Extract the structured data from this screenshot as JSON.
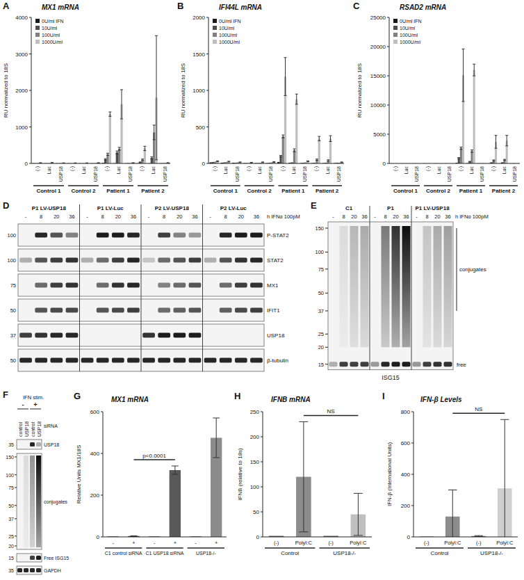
{
  "chart_data": [
    {
      "panel": "A",
      "type": "bar",
      "title": "MX1 mRNA",
      "y_label": "RU normalized to 18S",
      "categories": [
        "(-)",
        "Luc",
        "USP18",
        "(-)",
        "Luc",
        "USP18",
        "(-)",
        "Luc",
        "USP18",
        "(-)",
        "Luc",
        "USP18"
      ],
      "groups": [
        "Control 1",
        "Control 2",
        "Patient 1",
        "Patient 2"
      ],
      "series": [
        {
          "name": "0U/ml IFN",
          "color": "#1a1a1a",
          "values": [
            5,
            5,
            5,
            5,
            5,
            5,
            15,
            5,
            5,
            5,
            5,
            5
          ],
          "errors": [
            0,
            0,
            0,
            0,
            0,
            0,
            0,
            0,
            0,
            0,
            0,
            0
          ]
        },
        {
          "name": "10U/ml",
          "color": "#4d4d4d",
          "values": [
            5,
            5,
            5,
            5,
            5,
            5,
            110,
            300,
            10,
            30,
            150,
            10
          ],
          "errors": [
            0,
            0,
            0,
            0,
            0,
            0,
            20,
            40,
            0,
            10,
            30,
            0
          ]
        },
        {
          "name": "100U/ml",
          "color": "#808080",
          "values": [
            10,
            10,
            10,
            5,
            5,
            10,
            250,
            400,
            10,
            100,
            850,
            10
          ],
          "errors": [
            0,
            0,
            0,
            0,
            0,
            0,
            30,
            40,
            0,
            20,
            200,
            0
          ]
        },
        {
          "name": "1000U/ml",
          "color": "#bfbfbf",
          "values": [
            15,
            20,
            10,
            10,
            10,
            15,
            1350,
            1620,
            15,
            410,
            1800,
            15
          ],
          "errors": [
            5,
            5,
            5,
            5,
            5,
            5,
            60,
            400,
            5,
            60,
            1700,
            5
          ]
        }
      ],
      "ylim": [
        0,
        4000
      ],
      "yticks": [
        0,
        1000,
        2000,
        3000,
        4000
      ],
      "legend": "upper left"
    },
    {
      "panel": "B",
      "type": "bar",
      "title": "IFI44L mRNA",
      "y_label": "RU normalized to 18S",
      "categories": [
        "(-)",
        "Luc",
        "USP18",
        "(-)",
        "Luc",
        "USP18",
        "(-)",
        "Luc",
        "USP18",
        "(-)",
        "Luc",
        "USP18"
      ],
      "groups": [
        "Control 1",
        "Control 2",
        "Patient 1",
        "Patient 2"
      ],
      "series": [
        {
          "name": "0U/ml IFN",
          "color": "#1a1a1a",
          "values": [
            15,
            10,
            10,
            5,
            5,
            5,
            20,
            10,
            5,
            5,
            5,
            5
          ],
          "errors": [
            0,
            0,
            0,
            0,
            0,
            0,
            0,
            0,
            0,
            0,
            0,
            0
          ]
        },
        {
          "name": "10U/ml",
          "color": "#4d4d4d",
          "values": [
            20,
            15,
            10,
            5,
            5,
            10,
            100,
            15,
            10,
            10,
            10,
            10
          ],
          "errors": [
            0,
            0,
            0,
            0,
            0,
            0,
            10,
            0,
            0,
            0,
            0,
            0
          ]
        },
        {
          "name": "100U/ml",
          "color": "#808080",
          "values": [
            25,
            20,
            15,
            5,
            10,
            15,
            370,
            180,
            15,
            50,
            40,
            10
          ],
          "errors": [
            0,
            0,
            0,
            0,
            0,
            0,
            20,
            20,
            0,
            10,
            10,
            0
          ]
        },
        {
          "name": "1000U/ml",
          "color": "#bfbfbf",
          "values": [
            30,
            25,
            15,
            10,
            15,
            20,
            1190,
            880,
            30,
            340,
            340,
            15
          ],
          "errors": [
            5,
            5,
            5,
            5,
            5,
            5,
            260,
            70,
            5,
            30,
            40,
            5
          ]
        }
      ],
      "ylim": [
        0,
        2000
      ],
      "yticks": [
        0,
        500,
        1000,
        1500,
        2000
      ],
      "legend": "upper left"
    },
    {
      "panel": "C",
      "type": "bar",
      "title": "RSAD2 mRNA",
      "y_label": "RU normalized to 18S",
      "categories": [
        "(-)",
        "Luc",
        "USP18",
        "(-)",
        "Luc",
        "USP18",
        "(-)",
        "Luc",
        "USP18",
        "(-)",
        "Luc",
        "USP18"
      ],
      "groups": [
        "Control 1",
        "Control 2",
        "Patient 1",
        "Patient 2"
      ],
      "series": [
        {
          "name": "0U/ml IFN",
          "color": "#1a1a1a",
          "values": [
            10,
            10,
            10,
            10,
            10,
            10,
            100,
            50,
            10,
            20,
            20,
            10
          ],
          "errors": [
            0,
            0,
            0,
            0,
            0,
            0,
            0,
            0,
            0,
            0,
            0,
            0
          ]
        },
        {
          "name": "10U/ml",
          "color": "#4d4d4d",
          "values": [
            10,
            10,
            10,
            10,
            10,
            10,
            900,
            300,
            20,
            100,
            100,
            20
          ],
          "errors": [
            0,
            0,
            0,
            0,
            0,
            0,
            100,
            50,
            0,
            20,
            20,
            0
          ]
        },
        {
          "name": "100U/ml",
          "color": "#808080",
          "values": [
            20,
            20,
            10,
            20,
            10,
            10,
            2600,
            2100,
            30,
            500,
            600,
            30
          ],
          "errors": [
            0,
            0,
            0,
            0,
            0,
            0,
            200,
            200,
            0,
            100,
            100,
            0
          ]
        },
        {
          "name": "1000U/ml",
          "color": "#bfbfbf",
          "values": [
            30,
            30,
            20,
            20,
            20,
            20,
            15100,
            16000,
            50,
            3700,
            3900,
            40
          ],
          "errors": [
            0,
            0,
            0,
            0,
            0,
            0,
            4500,
            1000,
            0,
            1100,
            900,
            0
          ]
        }
      ],
      "ylim": [
        0,
        25000
      ],
      "yticks": [
        0,
        5000,
        10000,
        15000,
        20000,
        25000
      ],
      "legend": "upper left"
    },
    {
      "panel": "G",
      "type": "bar",
      "title": "MX1 mRNA",
      "y_label": "Relative Units MX1/18S",
      "categories": [
        "-",
        "+",
        "-",
        "+",
        "-",
        "+"
      ],
      "groups": [
        "C1 control siRNA",
        "C1 USP18 siRNA",
        "USP18-/-"
      ],
      "values": [
        2,
        4,
        2,
        320,
        2,
        475
      ],
      "errors": [
        0,
        1,
        0,
        20,
        0,
        95
      ],
      "colors": [
        "#333333",
        "#333333",
        "#333333",
        "#595959",
        "#333333",
        "#8c8c8c"
      ],
      "ylim": [
        0,
        600
      ],
      "yticks": [
        0,
        200,
        400,
        600
      ],
      "annotations": [
        {
          "text": "p<0.0001",
          "from": 1,
          "to": 3
        }
      ]
    },
    {
      "panel": "H",
      "type": "bar",
      "title": "IFNB mRNA",
      "y_label": "IFNB (relative to 18s)",
      "categories": [
        "(-)",
        "PolyI:C",
        "(-)",
        "PolyI:C"
      ],
      "groups": [
        "Control",
        "USP18-/-"
      ],
      "values": [
        2,
        120,
        2,
        45
      ],
      "errors": [
        0,
        110,
        0,
        42
      ],
      "colors": [
        "#595959",
        "#8c8c8c",
        "#595959",
        "#bfbfbf"
      ],
      "ylim": [
        0,
        250
      ],
      "yticks": [
        0,
        50,
        100,
        150,
        200,
        250
      ],
      "annotations": [
        {
          "text": "NS",
          "from": 1,
          "to": 3
        }
      ]
    },
    {
      "panel": "I",
      "type": "bar",
      "title": "IFN-β Levels",
      "y_label": "IFN-β (International Units)",
      "categories": [
        "(-)",
        "PolyI:C",
        "(-)",
        "PolyI:C"
      ],
      "groups": [
        "Control",
        "USP18-/-"
      ],
      "values": [
        2,
        130,
        5,
        310
      ],
      "errors": [
        0,
        170,
        3,
        440
      ],
      "colors": [
        "#595959",
        "#8c8c8c",
        "#595959",
        "#cfcfcf"
      ],
      "ylim": [
        0,
        800
      ],
      "yticks": [
        0,
        200,
        400,
        600,
        800
      ],
      "annotations": [
        {
          "text": "NS",
          "from": 1,
          "to": 3
        }
      ]
    }
  ],
  "blots": [
    {
      "panel": "D",
      "groups": [
        "P1 LV-USP18",
        "P1 LV-Luc",
        "P2 LV-USP18",
        "P2 LV-Luc"
      ],
      "lanes": [
        "-",
        "8",
        "20",
        "36"
      ],
      "condition": "h IFNα 100pM",
      "rows": [
        {
          "label": "P-STAT2",
          "mw": 100,
          "intensity": [
            0,
            0.9,
            0.7,
            0.5,
            0,
            0.95,
            0.95,
            0.9,
            0,
            0.8,
            0.5,
            0.4,
            0,
            0.9,
            0.95,
            0.95
          ]
        },
        {
          "label": "STAT2",
          "mw": 100,
          "intensity": [
            0.3,
            0.7,
            0.8,
            0.85,
            0.3,
            0.6,
            0.8,
            0.9,
            0.2,
            0.6,
            0.7,
            0.8,
            0.3,
            0.7,
            0.85,
            0.9
          ]
        },
        {
          "label": "MX1",
          "mw": 75,
          "intensity": [
            0,
            0.6,
            0.8,
            0.85,
            0,
            0.6,
            0.85,
            0.9,
            0,
            0.5,
            0.6,
            0.7,
            0,
            0.6,
            0.8,
            0.85
          ]
        },
        {
          "label": "IFIT1",
          "mw": 50,
          "intensity": [
            0,
            0.7,
            0.75,
            0.75,
            0,
            0.7,
            0.75,
            0.8,
            0,
            0.6,
            0.65,
            0.7,
            0,
            0.65,
            0.75,
            0.8
          ]
        },
        {
          "label": "USP18",
          "mw": 37,
          "intensity": [
            0.8,
            0.85,
            0.9,
            0.9,
            0,
            0,
            0,
            0,
            0.85,
            0.95,
            0.95,
            0.95,
            0,
            0,
            0,
            0
          ]
        },
        {
          "label": "β-tubulin",
          "mw": 50,
          "intensity": [
            0.9,
            0.9,
            0.9,
            0.9,
            0.9,
            0.9,
            0.9,
            0.9,
            0.9,
            0.9,
            0.9,
            0.9,
            0.9,
            0.9,
            0.9,
            0.9
          ]
        }
      ]
    },
    {
      "panel": "E",
      "groups": [
        "C1",
        "P1",
        "P1 LV-USP18"
      ],
      "lanes": [
        "-",
        "8",
        "20",
        "36"
      ],
      "condition": "h IFNα 100pM",
      "markers": [
        150,
        100,
        75,
        50,
        37,
        25,
        20,
        15
      ],
      "rows": [
        {
          "label": "conjugates",
          "intensity": [
            0,
            0.1,
            0.25,
            0.3,
            0,
            0.5,
            0.8,
            0.95,
            0,
            0.2,
            0.3,
            0.35
          ]
        },
        {
          "label": "free",
          "intensity": [
            0.3,
            0.8,
            0.8,
            0.8,
            0.4,
            0.9,
            0.95,
            0.95,
            0.4,
            0.8,
            0.85,
            0.85
          ]
        }
      ],
      "caption": "ISG15"
    },
    {
      "panel": "F",
      "header": "IFN stim.",
      "treatments": [
        "-",
        "+"
      ],
      "lanes": [
        "control",
        "USP18",
        "control",
        "USP18"
      ],
      "lane_label": "siRNA",
      "rows": [
        {
          "label": "USP18",
          "mw": [
            35
          ],
          "intensity": [
            0,
            0,
            0.9,
            0.3
          ]
        },
        {
          "label": "conjugates",
          "mw": [
            150,
            100,
            75,
            50,
            37,
            25,
            20
          ],
          "intensity": [
            0,
            0.1,
            0.4,
            0.95
          ]
        },
        {
          "label": "Free ISG15",
          "mw": [
            15
          ],
          "intensity": [
            0,
            0,
            0.8,
            0.95
          ]
        },
        {
          "label": "GAPDH",
          "mw": [
            35
          ],
          "intensity": [
            0.9,
            0.9,
            0.9,
            0.9
          ]
        }
      ]
    }
  ]
}
